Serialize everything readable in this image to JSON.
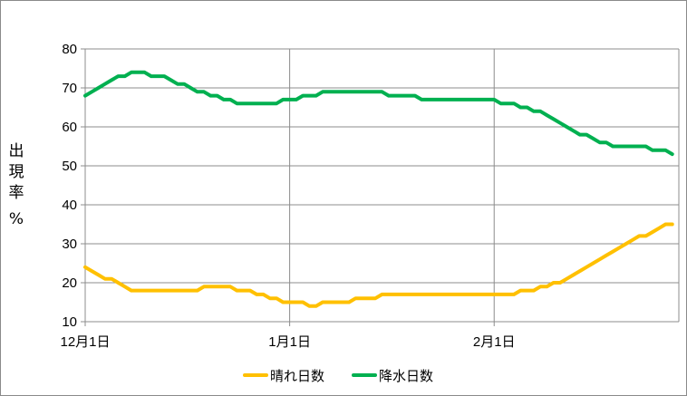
{
  "chart_data": {
    "type": "line",
    "title": "",
    "xlabel": "",
    "ylabel": "出現率 %",
    "ylabel_lines": [
      "出",
      "現",
      "率",
      "%"
    ],
    "x_tick_labels": [
      "12月1日",
      "1月1日",
      "2月1日"
    ],
    "x_ticks_at_day": [
      0,
      31,
      62
    ],
    "x_range_days": [
      0,
      90
    ],
    "ylim": [
      10,
      80
    ],
    "y_ticks": [
      10,
      20,
      30,
      40,
      50,
      60,
      70,
      80
    ],
    "grid": "horizontal and vertical (gray)",
    "legend_position": "bottom-center",
    "series": [
      {
        "name": "晴れ日数",
        "color": "#FFC000",
        "points": [
          [
            0,
            24
          ],
          [
            1,
            23
          ],
          [
            2,
            22
          ],
          [
            3,
            21
          ],
          [
            4,
            21
          ],
          [
            5,
            20
          ],
          [
            6,
            19
          ],
          [
            7,
            18
          ],
          [
            8,
            18
          ],
          [
            9,
            18
          ],
          [
            10,
            18
          ],
          [
            11,
            18
          ],
          [
            12,
            18
          ],
          [
            13,
            18
          ],
          [
            14,
            18
          ],
          [
            15,
            18
          ],
          [
            16,
            18
          ],
          [
            17,
            18
          ],
          [
            18,
            19
          ],
          [
            19,
            19
          ],
          [
            20,
            19
          ],
          [
            21,
            19
          ],
          [
            22,
            19
          ],
          [
            23,
            18
          ],
          [
            24,
            18
          ],
          [
            25,
            18
          ],
          [
            26,
            17
          ],
          [
            27,
            17
          ],
          [
            28,
            16
          ],
          [
            29,
            16
          ],
          [
            30,
            15
          ],
          [
            31,
            15
          ],
          [
            32,
            15
          ],
          [
            33,
            15
          ],
          [
            34,
            14
          ],
          [
            35,
            14
          ],
          [
            36,
            15
          ],
          [
            37,
            15
          ],
          [
            38,
            15
          ],
          [
            39,
            15
          ],
          [
            40,
            15
          ],
          [
            41,
            16
          ],
          [
            42,
            16
          ],
          [
            43,
            16
          ],
          [
            44,
            16
          ],
          [
            45,
            17
          ],
          [
            46,
            17
          ],
          [
            47,
            17
          ],
          [
            48,
            17
          ],
          [
            49,
            17
          ],
          [
            50,
            17
          ],
          [
            51,
            17
          ],
          [
            52,
            17
          ],
          [
            53,
            17
          ],
          [
            54,
            17
          ],
          [
            55,
            17
          ],
          [
            56,
            17
          ],
          [
            57,
            17
          ],
          [
            58,
            17
          ],
          [
            59,
            17
          ],
          [
            60,
            17
          ],
          [
            61,
            17
          ],
          [
            62,
            17
          ],
          [
            63,
            17
          ],
          [
            64,
            17
          ],
          [
            65,
            17
          ],
          [
            66,
            18
          ],
          [
            67,
            18
          ],
          [
            68,
            18
          ],
          [
            69,
            19
          ],
          [
            70,
            19
          ],
          [
            71,
            20
          ],
          [
            72,
            20
          ],
          [
            73,
            21
          ],
          [
            74,
            22
          ],
          [
            75,
            23
          ],
          [
            76,
            24
          ],
          [
            77,
            25
          ],
          [
            78,
            26
          ],
          [
            79,
            27
          ],
          [
            80,
            28
          ],
          [
            81,
            29
          ],
          [
            82,
            30
          ],
          [
            83,
            31
          ],
          [
            84,
            32
          ],
          [
            85,
            32
          ],
          [
            86,
            33
          ],
          [
            87,
            34
          ],
          [
            88,
            35
          ],
          [
            89,
            35
          ]
        ]
      },
      {
        "name": "降水日数",
        "color": "#00B050",
        "points": [
          [
            0,
            68
          ],
          [
            1,
            69
          ],
          [
            2,
            70
          ],
          [
            3,
            71
          ],
          [
            4,
            72
          ],
          [
            5,
            73
          ],
          [
            6,
            73
          ],
          [
            7,
            74
          ],
          [
            8,
            74
          ],
          [
            9,
            74
          ],
          [
            10,
            73
          ],
          [
            11,
            73
          ],
          [
            12,
            73
          ],
          [
            13,
            72
          ],
          [
            14,
            71
          ],
          [
            15,
            71
          ],
          [
            16,
            70
          ],
          [
            17,
            69
          ],
          [
            18,
            69
          ],
          [
            19,
            68
          ],
          [
            20,
            68
          ],
          [
            21,
            67
          ],
          [
            22,
            67
          ],
          [
            23,
            66
          ],
          [
            24,
            66
          ],
          [
            25,
            66
          ],
          [
            26,
            66
          ],
          [
            27,
            66
          ],
          [
            28,
            66
          ],
          [
            29,
            66
          ],
          [
            30,
            67
          ],
          [
            31,
            67
          ],
          [
            32,
            67
          ],
          [
            33,
            68
          ],
          [
            34,
            68
          ],
          [
            35,
            68
          ],
          [
            36,
            69
          ],
          [
            37,
            69
          ],
          [
            38,
            69
          ],
          [
            39,
            69
          ],
          [
            40,
            69
          ],
          [
            41,
            69
          ],
          [
            42,
            69
          ],
          [
            43,
            69
          ],
          [
            44,
            69
          ],
          [
            45,
            69
          ],
          [
            46,
            68
          ],
          [
            47,
            68
          ],
          [
            48,
            68
          ],
          [
            49,
            68
          ],
          [
            50,
            68
          ],
          [
            51,
            67
          ],
          [
            52,
            67
          ],
          [
            53,
            67
          ],
          [
            54,
            67
          ],
          [
            55,
            67
          ],
          [
            56,
            67
          ],
          [
            57,
            67
          ],
          [
            58,
            67
          ],
          [
            59,
            67
          ],
          [
            60,
            67
          ],
          [
            61,
            67
          ],
          [
            62,
            67
          ],
          [
            63,
            66
          ],
          [
            64,
            66
          ],
          [
            65,
            66
          ],
          [
            66,
            65
          ],
          [
            67,
            65
          ],
          [
            68,
            64
          ],
          [
            69,
            64
          ],
          [
            70,
            63
          ],
          [
            71,
            62
          ],
          [
            72,
            61
          ],
          [
            73,
            60
          ],
          [
            74,
            59
          ],
          [
            75,
            58
          ],
          [
            76,
            58
          ],
          [
            77,
            57
          ],
          [
            78,
            56
          ],
          [
            79,
            56
          ],
          [
            80,
            55
          ],
          [
            81,
            55
          ],
          [
            82,
            55
          ],
          [
            83,
            55
          ],
          [
            84,
            55
          ],
          [
            85,
            55
          ],
          [
            86,
            54
          ],
          [
            87,
            54
          ],
          [
            88,
            54
          ],
          [
            89,
            53
          ]
        ]
      }
    ]
  }
}
